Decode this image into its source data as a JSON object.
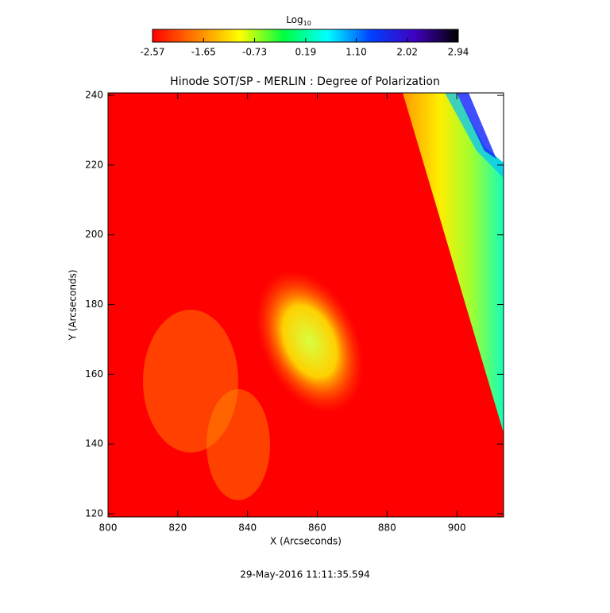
{
  "chart_data": {
    "type": "image",
    "title": "Hinode SOT/SP - MERLIN : Degree of Polarization",
    "x_label": "X (Arcseconds)",
    "y_label": "Y (Arcseconds)",
    "footer": "29-May-2016 11:11:35.594",
    "xlim": [
      800,
      913.4
    ],
    "xticks": [
      800,
      820,
      840,
      860,
      880,
      900
    ],
    "ylim": [
      119.1,
      240.7
    ],
    "yticks": [
      120,
      140,
      160,
      180,
      200,
      220,
      240
    ],
    "colorbar": {
      "label": "Log",
      "label_subscript": "10",
      "lim": [
        -2.57,
        2.94
      ],
      "ticks": [
        -2.57,
        -1.65,
        -0.73,
        0.19,
        {
          "value": 1.1,
          "label": "1.10"
        },
        2.02,
        2.94
      ],
      "colormap": [
        "#ff0000",
        "#ff7f00",
        "#ffff00",
        "#00ff40",
        "#00ffff",
        "#0040ff",
        "#4000c0",
        "#000000"
      ]
    }
  }
}
